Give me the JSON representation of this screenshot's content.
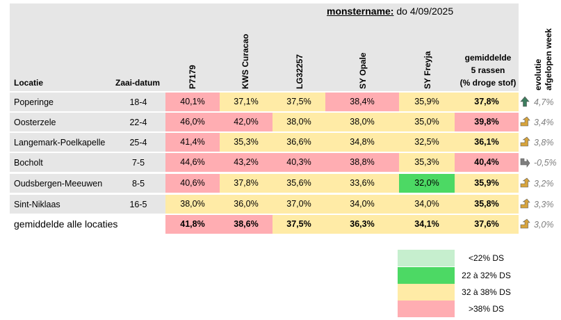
{
  "header": {
    "sample_label": "monstername:",
    "sample_date": "do 4/09/2025",
    "col_location": "Locatie",
    "col_sowing": "Zaai-datum",
    "varieties": [
      "P7179",
      "KWS Curacao",
      "LG32257",
      "SY Opale",
      "SY Freyja"
    ],
    "avg_line1": "gemiddelde",
    "avg_line2": "5 rassen",
    "avg_line3": "(% droge stof)",
    "evo_line1": "evolutie",
    "evo_line2": "afgelopen week"
  },
  "colors": {
    "light_green": "#c6efce",
    "green": "#4cd964",
    "yellow": "#ffeba6",
    "red": "#ffadb2",
    "header_grey": "#e6e6e6",
    "arrow_up": "#d7a43d",
    "arrow_flat_up": "#3c7d5e",
    "arrow_down": "#7f7f7f"
  },
  "rows": [
    {
      "location": "Poperinge",
      "date": "18-4",
      "values": [
        "40,1%",
        "37,1%",
        "37,5%",
        "38,4%",
        "35,9%"
      ],
      "classes": [
        "red",
        "yellow",
        "yellow",
        "red",
        "yellow"
      ],
      "avg": "37,8%",
      "avg_class": "yellow",
      "evo_icon": "arrow-up-icon",
      "evo": "4,7%"
    },
    {
      "location": "Oosterzele",
      "date": "22-4",
      "values": [
        "46,0%",
        "42,0%",
        "38,0%",
        "38,0%",
        "35,0%"
      ],
      "classes": [
        "red",
        "red",
        "yellow",
        "yellow",
        "yellow"
      ],
      "avg": "39,8%",
      "avg_class": "red",
      "evo_icon": "arrow-up-right-icon",
      "evo": "3,4%"
    },
    {
      "location": "Langemark-Poelkapelle",
      "date": "25-4",
      "values": [
        "41,4%",
        "35,3%",
        "36,6%",
        "34,8%",
        "32,5%"
      ],
      "classes": [
        "red",
        "yellow",
        "yellow",
        "yellow",
        "yellow"
      ],
      "avg": "36,1%",
      "avg_class": "yellow",
      "evo_icon": "arrow-up-right-icon",
      "evo": "3,8%"
    },
    {
      "location": "Bocholt",
      "date": "7-5",
      "values": [
        "44,6%",
        "43,2%",
        "40,3%",
        "38,8%",
        "35,3%"
      ],
      "classes": [
        "red",
        "red",
        "red",
        "red",
        "yellow"
      ],
      "avg": "40,4%",
      "avg_class": "red",
      "evo_icon": "arrow-down-right-icon",
      "evo": "-0,5%"
    },
    {
      "location": "Oudsbergen-Meeuwen",
      "date": "8-5",
      "values": [
        "40,6%",
        "37,8%",
        "35,6%",
        "33,6%",
        "32,0%"
      ],
      "classes": [
        "red",
        "yellow",
        "yellow",
        "yellow",
        "green"
      ],
      "avg": "35,9%",
      "avg_class": "yellow",
      "evo_icon": "arrow-up-right-icon",
      "evo": "3,2%"
    },
    {
      "location": "Sint-Niklaas",
      "date": "16-5",
      "values": [
        "38,0%",
        "36,0%",
        "37,0%",
        "34,0%",
        "34,0%"
      ],
      "classes": [
        "yellow",
        "yellow",
        "yellow",
        "yellow",
        "yellow"
      ],
      "avg": "35,8%",
      "avg_class": "yellow",
      "evo_icon": "arrow-up-right-icon",
      "evo": "3,3%"
    }
  ],
  "total": {
    "location": "gemiddelde alle locaties",
    "values": [
      "41,8%",
      "38,6%",
      "37,5%",
      "36,3%",
      "34,1%"
    ],
    "classes": [
      "red",
      "red",
      "yellow",
      "yellow",
      "yellow"
    ],
    "avg": "37,6%",
    "avg_class": "yellow",
    "evo_icon": "arrow-up-right-icon",
    "evo": "3,0%"
  },
  "legend": [
    {
      "label": "<22% DS",
      "class": "light_green"
    },
    {
      "label": "22 à 32% DS",
      "class": "green"
    },
    {
      "label": "32 à 38% DS",
      "class": "yellow"
    },
    {
      "label": ">38% DS",
      "class": "red"
    }
  ]
}
